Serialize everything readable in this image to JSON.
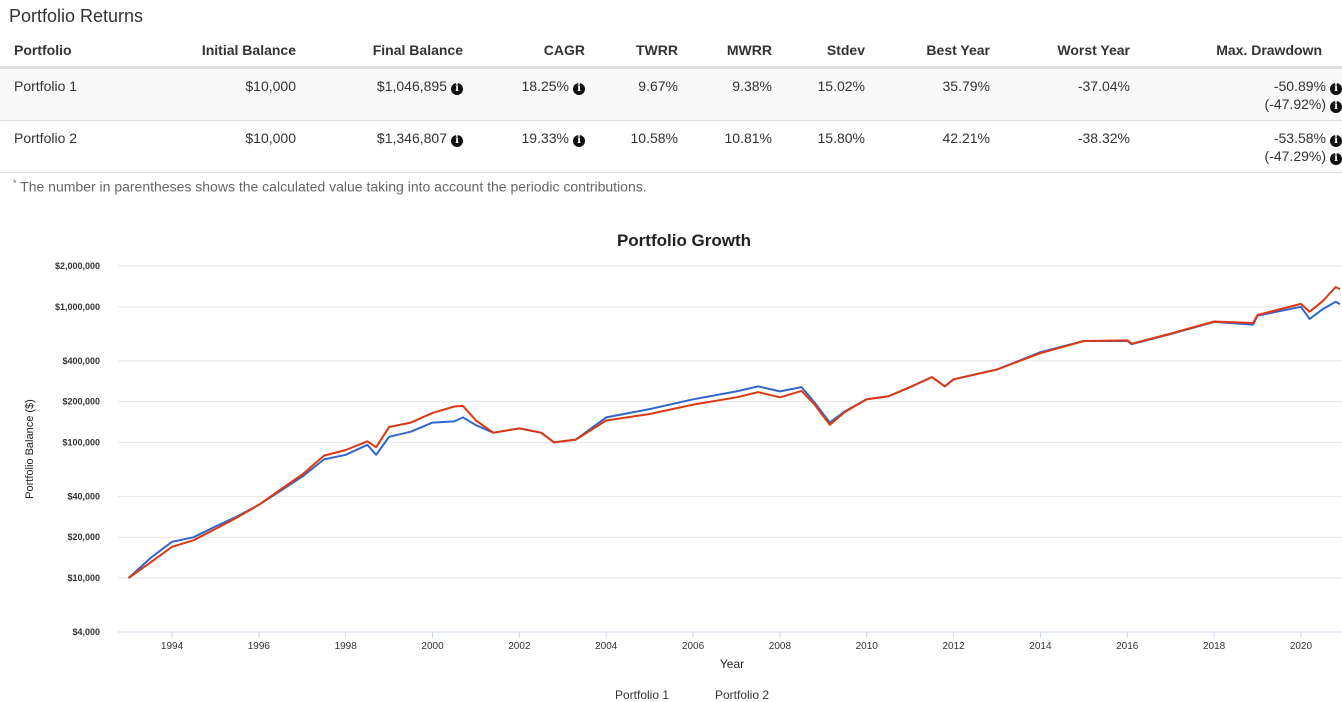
{
  "page_title": "Portfolio Returns",
  "table": {
    "headers": [
      "Portfolio",
      "Initial Balance",
      "Final Balance",
      "CAGR",
      "TWRR",
      "MWRR",
      "Stdev",
      "Best Year",
      "Worst Year",
      "Max. Drawdown"
    ],
    "rows": [
      {
        "portfolio": "Portfolio 1",
        "initial": "$10,000",
        "final": "$1,046,895",
        "cagr": "18.25%",
        "twrr": "9.67%",
        "mwrr": "9.38%",
        "stdev": "15.02%",
        "best": "35.79%",
        "worst": "-37.04%",
        "maxdd": "-50.89%",
        "maxdd_contrib": "(-47.92%)"
      },
      {
        "portfolio": "Portfolio 2",
        "initial": "$10,000",
        "final": "$1,346,807",
        "cagr": "19.33%",
        "twrr": "10.58%",
        "mwrr": "10.81%",
        "stdev": "15.80%",
        "best": "42.21%",
        "worst": "-38.32%",
        "maxdd": "-53.58%",
        "maxdd_contrib": "(-47.29%)"
      }
    ]
  },
  "footnote_mark": "*",
  "footnote": "The number in parentheses shows the calculated value taking into account the periodic contributions.",
  "icons": {
    "info": "info-circle-icon"
  },
  "chart_data": {
    "type": "line",
    "title": "Portfolio Growth",
    "xlabel": "Year",
    "ylabel": "Portfolio Balance ($)",
    "yscale": "log",
    "ylim": [
      4000,
      2000000
    ],
    "xlim": [
      1993,
      2020.9
    ],
    "yticks": [
      4000,
      10000,
      20000,
      40000,
      100000,
      200000,
      400000,
      1000000,
      2000000
    ],
    "ytick_labels": [
      "$4,000",
      "$10,000",
      "$20,000",
      "$40,000",
      "$100,000",
      "$200,000",
      "$400,000",
      "$1,000,000",
      "$2,000,000"
    ],
    "xticks": [
      1994,
      1996,
      1998,
      2000,
      2002,
      2004,
      2006,
      2008,
      2010,
      2012,
      2014,
      2016,
      2018,
      2020
    ],
    "xtick_labels": [
      "1994",
      "1996",
      "1998",
      "2000",
      "2002",
      "2004",
      "2006",
      "2008",
      "2010",
      "2012",
      "2014",
      "2016",
      "2018",
      "2020"
    ],
    "grid": true,
    "legend": "bottom",
    "series": [
      {
        "name": "Portfolio 1",
        "color": "#3366cc",
        "x": [
          1993,
          1993.5,
          1994,
          1994.5,
          1995,
          1995.5,
          1996,
          1996.5,
          1997,
          1997.5,
          1998,
          1998.5,
          1998.7,
          1999,
          1999.5,
          2000,
          2000.5,
          2000.7,
          2001,
          2001.4,
          2002,
          2002.5,
          2002.8,
          2003.3,
          2004,
          2005,
          2006,
          2007,
          2007.5,
          2008,
          2008.5,
          2008.8,
          2009.15,
          2009.5,
          2010,
          2010.5,
          2011,
          2011.5,
          2011.8,
          2012,
          2013,
          2014,
          2015,
          2016,
          2016.1,
          2017,
          2018,
          2018.9,
          2019,
          2020,
          2020.2,
          2020.5,
          2020.8,
          2020.9
        ],
        "y": [
          10000,
          14000,
          18500,
          20000,
          24000,
          28500,
          34700,
          44000,
          56000,
          75000,
          81000,
          96000,
          81000,
          110000,
          120000,
          140000,
          143000,
          153000,
          134000,
          118000,
          127000,
          118000,
          100000,
          105000,
          153000,
          176000,
          208000,
          238000,
          259000,
          238000,
          256000,
          197000,
          140000,
          170000,
          208000,
          219000,
          256000,
          303000,
          259000,
          292000,
          345000,
          463000,
          560000,
          560000,
          530000,
          630000,
          774000,
          740000,
          860000,
          1000000,
          815000,
          960000,
          1090000,
          1046895
        ]
      },
      {
        "name": "Portfolio 2",
        "color": "#dc3912",
        "x": [
          1993,
          1993.5,
          1994,
          1994.5,
          1995,
          1995.5,
          1996,
          1996.5,
          1997,
          1997.5,
          1998,
          1998.5,
          1998.7,
          1999,
          1999.5,
          2000,
          2000.5,
          2000.7,
          2001,
          2001.4,
          2002,
          2002.5,
          2002.8,
          2003.3,
          2004,
          2005,
          2006,
          2007,
          2007.5,
          2008,
          2008.5,
          2008.8,
          2009.15,
          2009.5,
          2010,
          2010.5,
          2011,
          2011.5,
          2011.8,
          2012,
          2013,
          2014,
          2015,
          2016,
          2016.1,
          2017,
          2018,
          2018.9,
          2019,
          2020,
          2020.2,
          2020.5,
          2020.8,
          2020.9
        ],
        "y": [
          10000,
          13000,
          17000,
          19000,
          23000,
          28000,
          34700,
          45000,
          58000,
          80000,
          88000,
          102000,
          92000,
          130000,
          140000,
          165000,
          184000,
          186000,
          145000,
          118000,
          127000,
          118000,
          100000,
          105000,
          145000,
          162000,
          190000,
          215000,
          235000,
          215000,
          240000,
          190000,
          135000,
          168000,
          208000,
          219000,
          256000,
          303000,
          259000,
          292000,
          345000,
          455000,
          560000,
          565000,
          535000,
          635000,
          780000,
          760000,
          870000,
          1050000,
          920000,
          1100000,
          1400000,
          1346807
        ]
      }
    ]
  }
}
